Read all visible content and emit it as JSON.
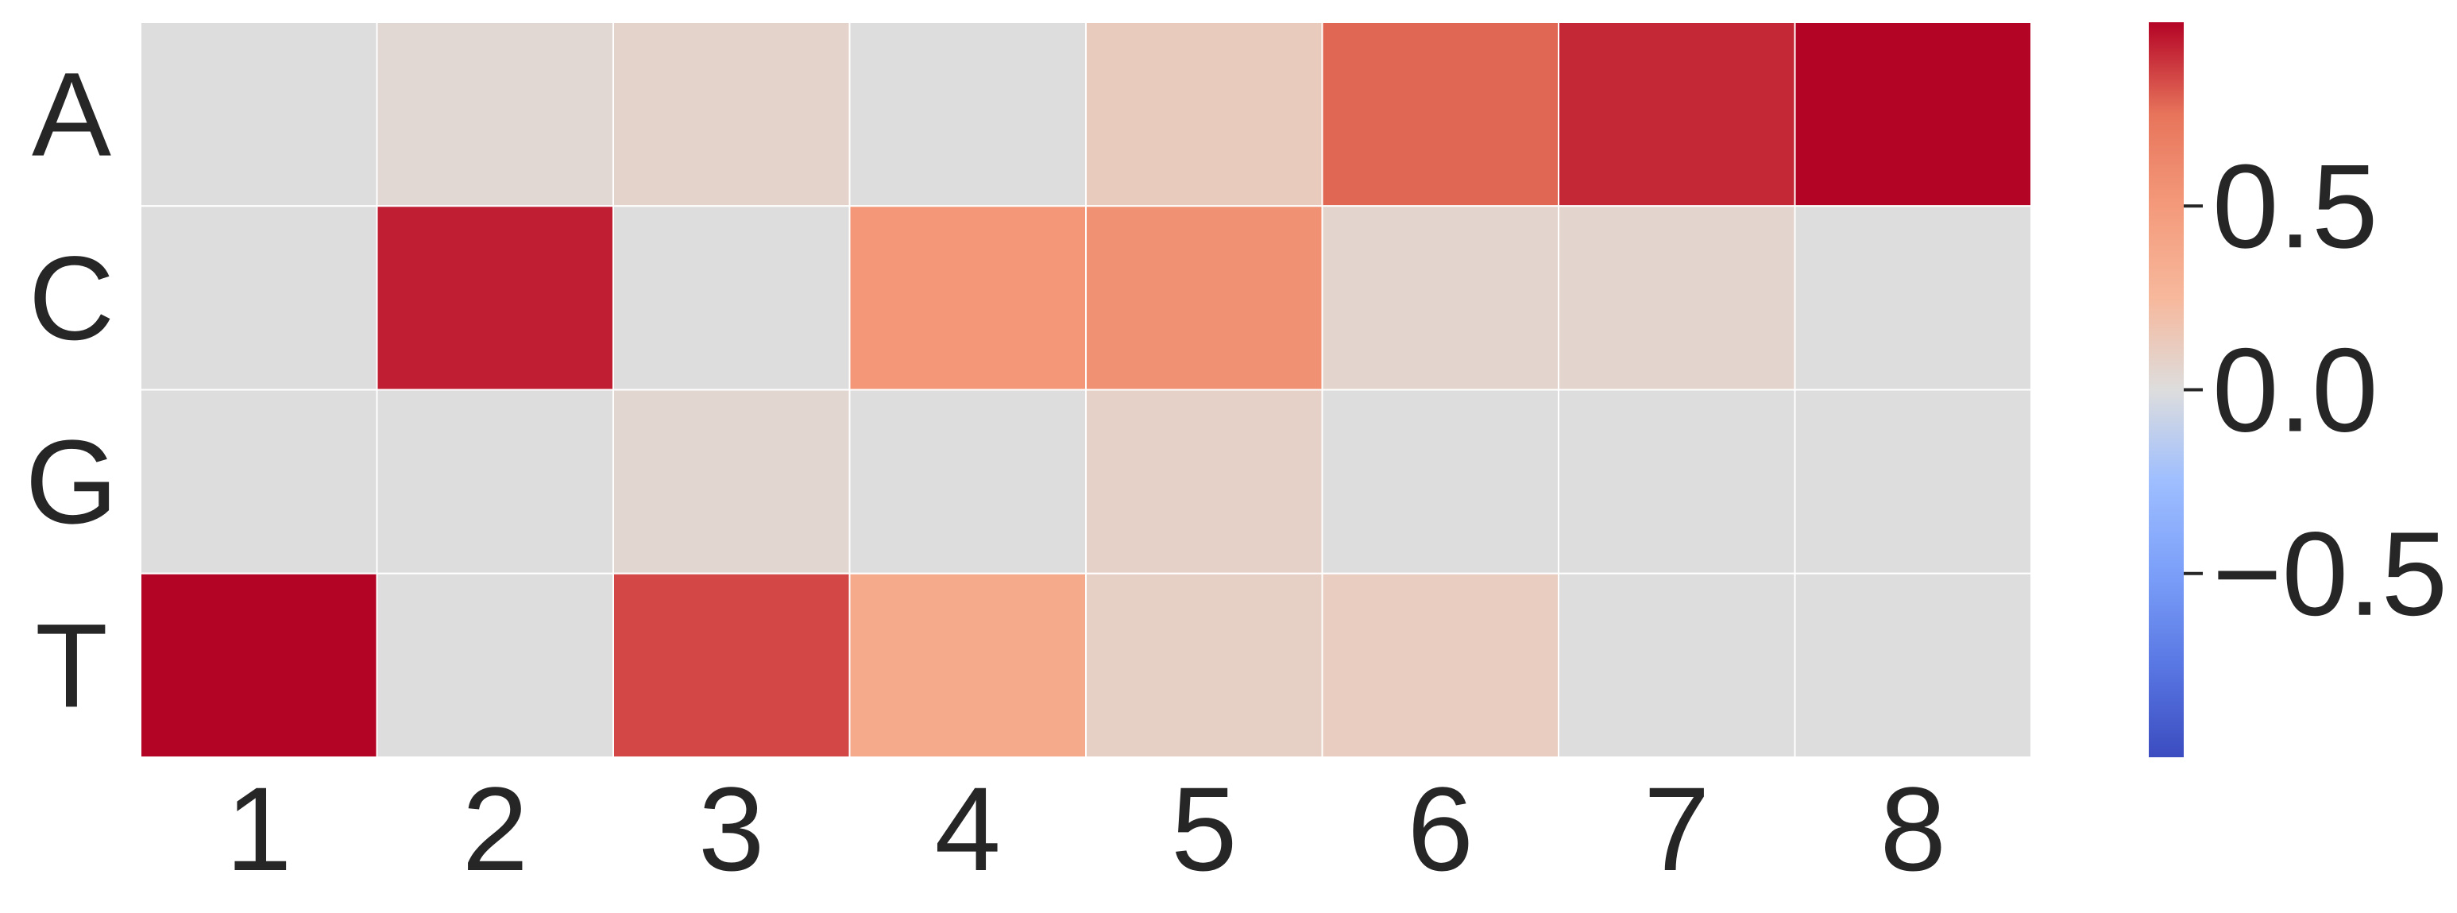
{
  "chart_data": {
    "type": "heatmap",
    "title": "",
    "xlabel": "",
    "ylabel": "",
    "rows": [
      "A",
      "C",
      "G",
      "T"
    ],
    "columns": [
      "1",
      "2",
      "3",
      "4",
      "5",
      "6",
      "7",
      "8"
    ],
    "values": [
      [
        0.0,
        0.04,
        0.07,
        0.0,
        0.12,
        0.78,
        0.92,
        1.0
      ],
      [
        0.0,
        0.94,
        0.0,
        0.52,
        0.56,
        0.06,
        0.06,
        0.0
      ],
      [
        0.0,
        0.0,
        0.05,
        0.0,
        0.08,
        0.0,
        0.0,
        0.0
      ],
      [
        1.0,
        0.0,
        0.85,
        0.37,
        0.09,
        0.11,
        0.0,
        0.0
      ]
    ],
    "colormap": "coolwarm",
    "vmin": -1.0,
    "vmax": 1.0,
    "grid_line_color": "#ffffff",
    "colorbar": {
      "ticks": [
        0.5,
        0.0,
        -0.5
      ],
      "tick_labels": [
        "0.5",
        "0.0",
        "−0.5"
      ],
      "placement": "right"
    }
  }
}
